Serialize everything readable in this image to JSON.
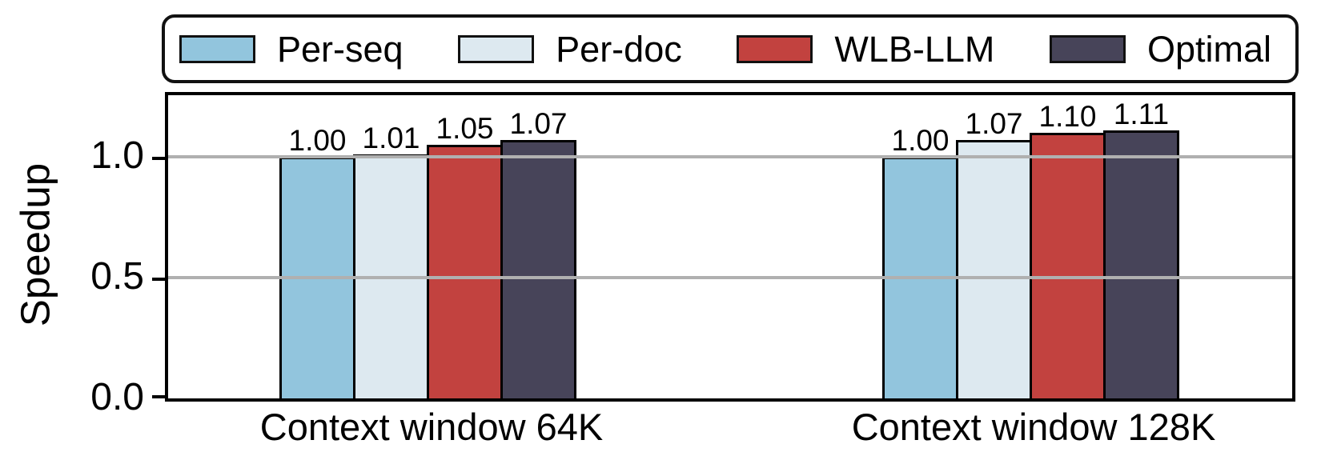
{
  "chart_data": {
    "type": "bar",
    "title": "",
    "xlabel": "",
    "ylabel": "Speedup",
    "categories": [
      "Context window 64K",
      "Context window 128K"
    ],
    "series": [
      {
        "name": "Per-seq",
        "color": "#92c5dd",
        "values": [
          1.0,
          1.0
        ]
      },
      {
        "name": "Per-doc",
        "color": "#dde9f0",
        "values": [
          1.01,
          1.07
        ]
      },
      {
        "name": "WLB-LLM",
        "color": "#c2423f",
        "values": [
          1.05,
          1.1
        ]
      },
      {
        "name": "Optimal",
        "color": "#474459",
        "values": [
          1.07,
          1.11
        ]
      }
    ],
    "value_labels": {
      "Context window 64K": [
        "1.00",
        "1.01",
        "1.05",
        "1.07"
      ],
      "Context window 128K": [
        "1.00",
        "1.07",
        "1.10",
        "1.11"
      ]
    },
    "yticks": [
      "0.0",
      "0.5",
      "1.0"
    ],
    "ylim": [
      0,
      1.255
    ],
    "grid": "horizontal, gray, drawn above bars",
    "gridline_color": "#b0b0b0",
    "bar_edge_color": "#000000",
    "legend_position": "top, boxed, horizontal"
  }
}
